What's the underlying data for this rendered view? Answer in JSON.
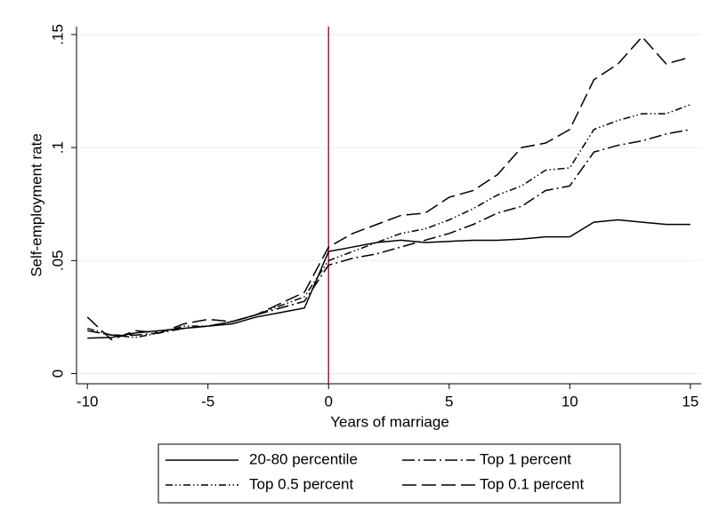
{
  "chart_data": {
    "type": "line",
    "x_label": "Years of marriage",
    "y_label": "Self-employment rate",
    "x": [
      -10,
      -9,
      -8,
      -7,
      -6,
      -5,
      -4,
      -3,
      -2,
      -1,
      0,
      1,
      2,
      3,
      4,
      5,
      6,
      7,
      8,
      9,
      10,
      11,
      12,
      13,
      14,
      15
    ],
    "series": [
      {
        "name": "20-80 percentile",
        "color": "#000000",
        "dash": "solid",
        "values": [
          0.0157,
          0.016,
          0.018,
          0.019,
          0.02,
          0.021,
          0.022,
          0.025,
          0.027,
          0.029,
          0.054,
          0.056,
          0.058,
          0.059,
          0.058,
          0.0585,
          0.059,
          0.059,
          0.0595,
          0.0605,
          0.0605,
          0.067,
          0.068,
          0.067,
          0.066,
          0.066
        ]
      },
      {
        "name": "Top 1 percent",
        "color": "#000000",
        "dash": "dashdot",
        "values": [
          0.019,
          0.017,
          0.017,
          0.018,
          0.02,
          0.021,
          0.023,
          0.026,
          0.029,
          0.032,
          0.048,
          0.051,
          0.053,
          0.056,
          0.059,
          0.062,
          0.066,
          0.071,
          0.074,
          0.081,
          0.083,
          0.098,
          0.101,
          0.103,
          0.106,
          0.108
        ]
      },
      {
        "name": "Top 0.5 percent",
        "color": "#000000",
        "dash": "dashdotdot",
        "values": [
          0.02,
          0.017,
          0.016,
          0.018,
          0.021,
          0.021,
          0.023,
          0.026,
          0.03,
          0.034,
          0.05,
          0.054,
          0.058,
          0.062,
          0.064,
          0.068,
          0.073,
          0.079,
          0.083,
          0.09,
          0.091,
          0.108,
          0.112,
          0.115,
          0.115,
          0.119
        ]
      },
      {
        "name": "Top 0.1 percent",
        "color": "#000000",
        "dash": "longdash",
        "values": [
          0.025,
          0.015,
          0.019,
          0.018,
          0.022,
          0.024,
          0.023,
          0.026,
          0.031,
          0.036,
          0.056,
          0.062,
          0.066,
          0.07,
          0.071,
          0.078,
          0.081,
          0.088,
          0.1,
          0.102,
          0.108,
          0.13,
          0.137,
          0.149,
          0.137,
          0.14
        ]
      }
    ],
    "xlim": [
      -10.45,
      15.45
    ],
    "xticks": [
      -10,
      -5,
      0,
      5,
      10,
      15
    ],
    "ylim": [
      -0.0045,
      0.1535
    ],
    "yticks": [
      0,
      {
        "value": 0.05,
        "label": ".05"
      },
      {
        "value": 0.1,
        "label": ".1"
      },
      {
        "value": 0.15,
        "label": ".15"
      }
    ],
    "grid": true,
    "xline": {
      "value": 0,
      "color": "#c8102e"
    },
    "legend": {
      "position": "bottom",
      "columns": 2
    }
  }
}
